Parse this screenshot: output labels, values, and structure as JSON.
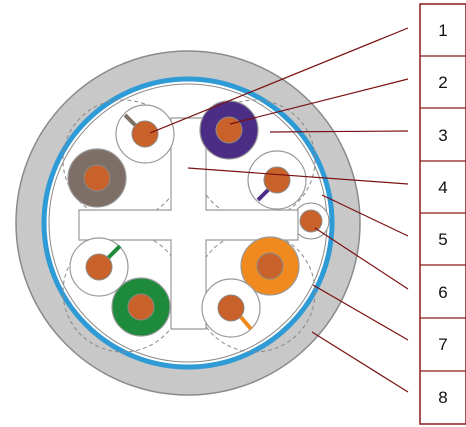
{
  "labels": [
    "1",
    "2",
    "3",
    "4",
    "5",
    "6",
    "7",
    "8"
  ],
  "colors": {
    "jacket": "#c8c8c8",
    "jacket_stroke": "#8a8a8a",
    "shield": "#2e9bd6",
    "copper": "#c8622a",
    "brown": "#7d6e66",
    "purple": "#4b2d86",
    "orange": "#f08a1e",
    "green": "#1e8a3c",
    "leader": "#7a1010",
    "table_border": "#8b1a1a"
  }
}
